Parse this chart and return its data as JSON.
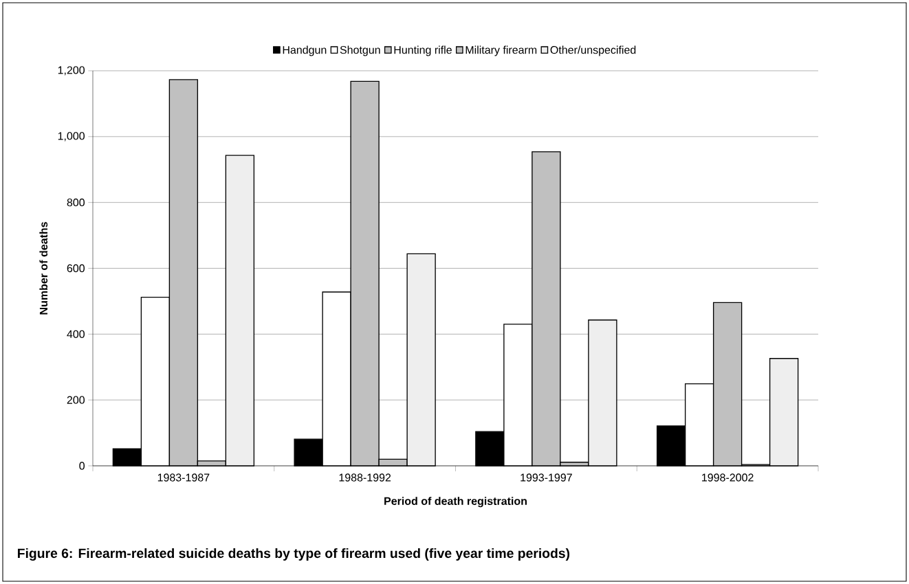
{
  "chart_data": {
    "type": "bar",
    "title": "Figure 6: Firearm-related suicide deaths by type of firearm used (five year time periods)",
    "xlabel": "Period of death registration",
    "ylabel": "Number of deaths",
    "categories": [
      "1983-1987",
      "1988-1992",
      "1993-1997",
      "1998-2002"
    ],
    "series": [
      {
        "name": "Handgun",
        "color": "#000000",
        "values": [
          52,
          81,
          104,
          121
        ]
      },
      {
        "name": "Shotgun",
        "color": "#ffffff",
        "values": [
          512,
          528,
          430,
          249
        ]
      },
      {
        "name": "Hunting rifle",
        "color": "#c0c0c0",
        "values": [
          1173,
          1168,
          954,
          496
        ]
      },
      {
        "name": "Military firearm",
        "color": "#c0c0c0",
        "values": [
          15,
          20,
          11,
          4
        ]
      },
      {
        "name": "Other/unspecified",
        "color": "#eeeeee",
        "values": [
          943,
          644,
          443,
          326
        ]
      }
    ],
    "ylim": [
      0,
      1200
    ],
    "yticks": [
      {
        "value": 0,
        "label": "0"
      },
      {
        "value": 200,
        "label": "200"
      },
      {
        "value": 400,
        "label": "400"
      },
      {
        "value": 600,
        "label": "600"
      },
      {
        "value": 800,
        "label": "800"
      },
      {
        "value": 1000,
        "label": "1,000"
      },
      {
        "value": 1200,
        "label": "1,200"
      }
    ],
    "grid": "y",
    "legend": "top"
  }
}
